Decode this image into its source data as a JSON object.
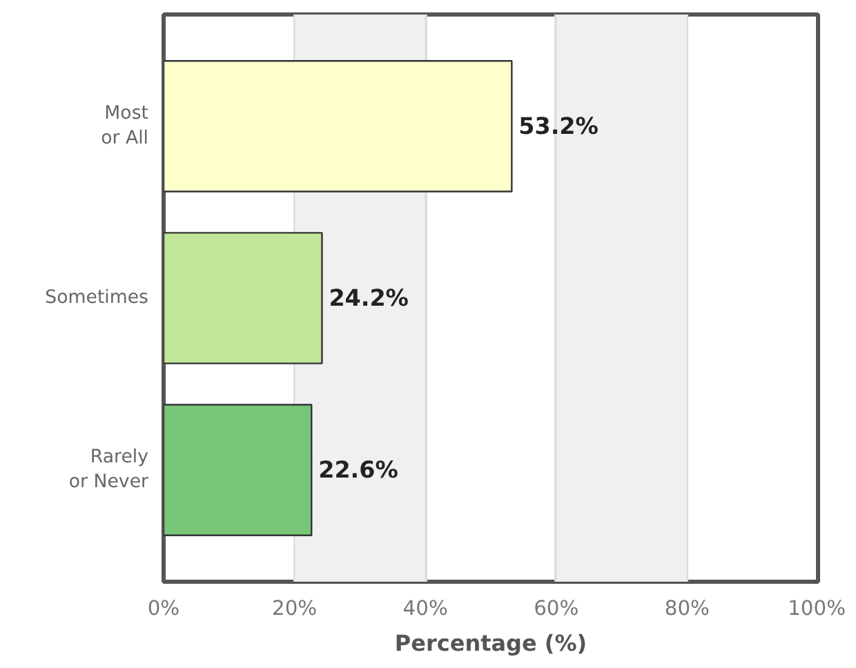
{
  "chart_data": {
    "type": "bar",
    "orientation": "horizontal",
    "xlabel": "Percentage (%)",
    "categories": [
      "Most\nor All",
      "Sometimes",
      "Rarely\nor Never"
    ],
    "values": [
      53.2,
      24.2,
      22.6
    ],
    "colors": [
      "#ffffcc",
      "#c2e699",
      "#78c679"
    ],
    "value_labels": [
      "53.2%",
      "24.2%",
      "22.6%"
    ],
    "xlim": [
      0,
      100
    ],
    "xticks": [
      {
        "value": 0,
        "label": "0%"
      },
      {
        "value": 20,
        "label": "20%"
      },
      {
        "value": 40,
        "label": "40%"
      },
      {
        "value": 60,
        "label": "60%"
      },
      {
        "value": 80,
        "label": "80%"
      },
      {
        "value": 100,
        "label": "100%"
      }
    ],
    "bands": [
      {
        "axis": "x",
        "from": 20,
        "to": 40,
        "color": "#f0f0f0"
      },
      {
        "axis": "x",
        "from": 60,
        "to": 80,
        "color": "#f0f0f0"
      }
    ],
    "grid": "x"
  }
}
